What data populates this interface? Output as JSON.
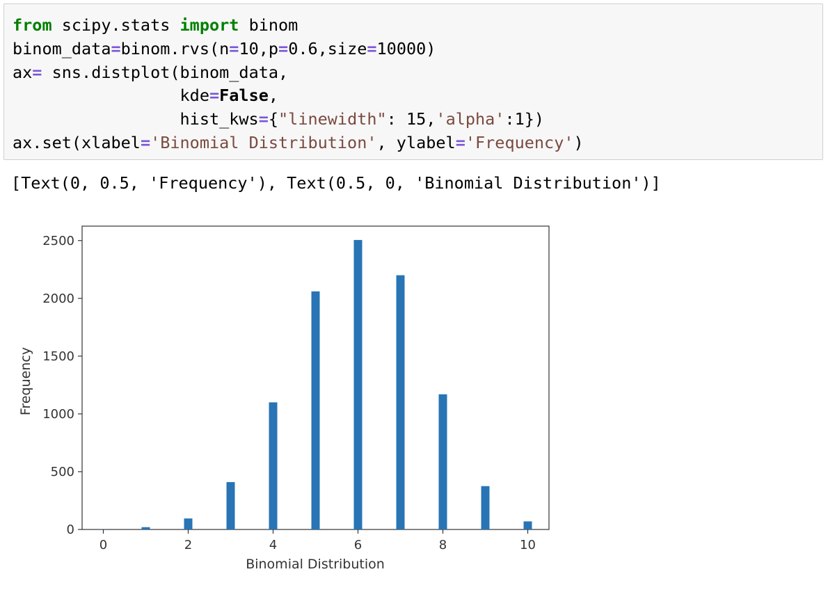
{
  "code_cell": {
    "lines": [
      [
        {
          "t": "from",
          "c": "kw"
        },
        {
          "t": " scipy.stats ",
          "c": ""
        },
        {
          "t": "import",
          "c": "kw"
        },
        {
          "t": " binom",
          "c": ""
        }
      ],
      [
        {
          "t": "binom_data",
          "c": ""
        },
        {
          "t": "=",
          "c": "op"
        },
        {
          "t": "binom.rvs(n",
          "c": ""
        },
        {
          "t": "=",
          "c": "op"
        },
        {
          "t": "10,p",
          "c": ""
        },
        {
          "t": "=",
          "c": "op"
        },
        {
          "t": "0.6,size",
          "c": ""
        },
        {
          "t": "=",
          "c": "op"
        },
        {
          "t": "10000)",
          "c": ""
        }
      ],
      [
        {
          "t": "ax",
          "c": ""
        },
        {
          "t": "=",
          "c": "op"
        },
        {
          "t": " sns.distplot(binom_data,",
          "c": ""
        }
      ],
      [
        {
          "t": "                 kde",
          "c": ""
        },
        {
          "t": "=",
          "c": "op"
        },
        {
          "t": "False",
          "c": "kw2"
        },
        {
          "t": ",",
          "c": ""
        }
      ],
      [
        {
          "t": "                 hist_kws",
          "c": ""
        },
        {
          "t": "=",
          "c": "op"
        },
        {
          "t": "{",
          "c": ""
        },
        {
          "t": "\"linewidth\"",
          "c": "str2"
        },
        {
          "t": ": 15,",
          "c": ""
        },
        {
          "t": "'alpha'",
          "c": "str2"
        },
        {
          "t": ":1})",
          "c": ""
        }
      ],
      [
        {
          "t": "ax.set(xlabel",
          "c": ""
        },
        {
          "t": "=",
          "c": "op"
        },
        {
          "t": "'Binomial Distribution'",
          "c": "str2"
        },
        {
          "t": ", ylabel",
          "c": ""
        },
        {
          "t": "=",
          "c": "op"
        },
        {
          "t": "'Frequency'",
          "c": "str2"
        },
        {
          "t": ")",
          "c": ""
        }
      ]
    ]
  },
  "output_text": "[Text(0, 0.5, 'Frequency'), Text(0.5, 0, 'Binomial Distribution')]",
  "chart_data": {
    "type": "bar",
    "x": [
      0,
      1,
      2,
      3,
      4,
      5,
      6,
      7,
      8,
      9,
      10
    ],
    "values": [
      1,
      20,
      95,
      410,
      1100,
      2060,
      2505,
      2200,
      1170,
      375,
      70
    ],
    "xlabel": "Binomial Distribution",
    "ylabel": "Frequency",
    "xticks": [
      0,
      2,
      4,
      6,
      8,
      10
    ],
    "yticks": [
      0,
      500,
      1000,
      1500,
      2000,
      2500
    ],
    "xlim": [
      -0.5,
      10.5
    ],
    "ylim": [
      0,
      2625
    ],
    "grid": false,
    "bar_color": "#2874b5"
  }
}
